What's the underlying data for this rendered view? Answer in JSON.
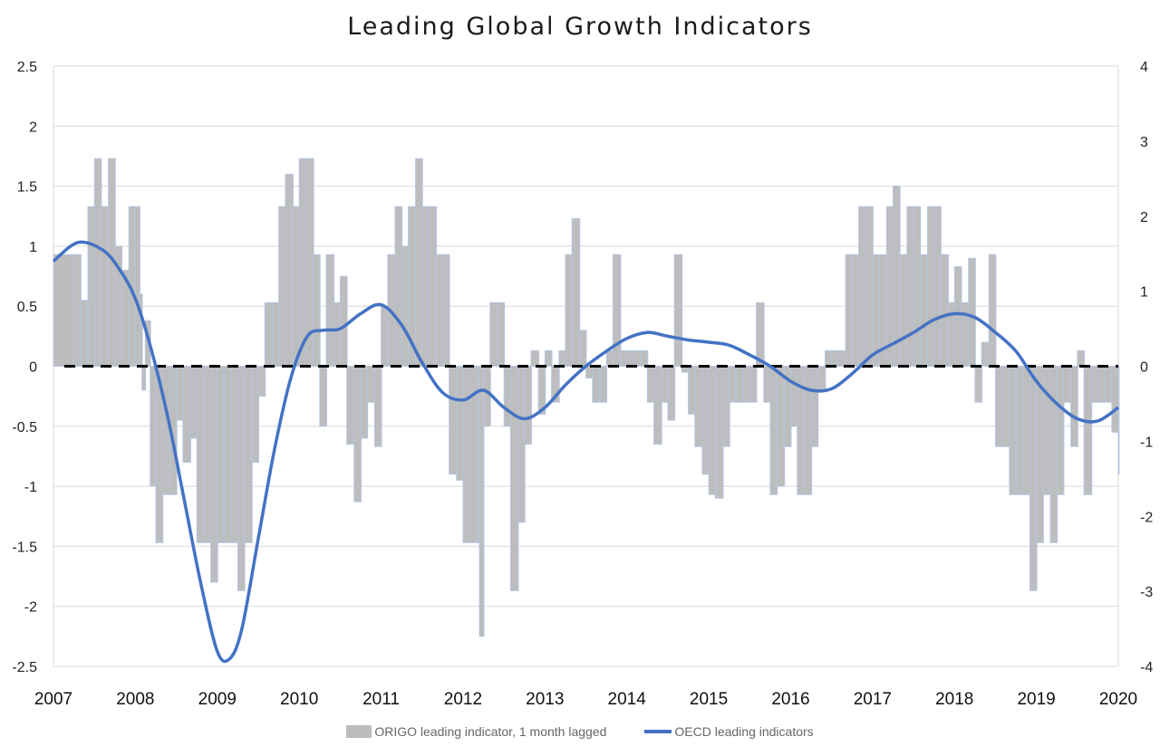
{
  "chart_data": {
    "type": "bar",
    "title": "Leading Global Growth Indicators",
    "xlabel": "",
    "ylabel": "",
    "x_ticks": [
      "2007",
      "2008",
      "2009",
      "2010",
      "2011",
      "2012",
      "2013",
      "2014",
      "2015",
      "2016",
      "2017",
      "2018",
      "2019",
      "2020"
    ],
    "xlim": [
      2007,
      2020
    ],
    "left_axis": {
      "ylim": [
        -2.5,
        2.5
      ],
      "ticks": [
        "2.5",
        "2",
        "1.5",
        "1",
        "0.5",
        "0",
        "-0.5",
        "-1",
        "-1.5",
        "-2",
        "-2.5"
      ]
    },
    "right_axis": {
      "ylim": [
        -4,
        4
      ],
      "ticks": [
        "4",
        "3",
        "2",
        "1",
        "0",
        "-1",
        "-2",
        "-3",
        "-4"
      ]
    },
    "grid": true,
    "zero_line": "dashed",
    "legend_position": "bottom",
    "series": [
      {
        "name": "ORIGO leading indicator, 1 month lagged",
        "kind": "bar",
        "axis": "left",
        "color": "#bdbdbd",
        "points": [
          [
            2007.0,
            0.93
          ],
          [
            2007.25,
            0.93
          ],
          [
            2007.33,
            0.55
          ],
          [
            2007.42,
            1.33
          ],
          [
            2007.5,
            1.73
          ],
          [
            2007.58,
            1.33
          ],
          [
            2007.67,
            1.73
          ],
          [
            2007.75,
            1.0
          ],
          [
            2007.83,
            0.8
          ],
          [
            2007.92,
            1.33
          ],
          [
            2008.0,
            1.33
          ],
          [
            2008.05,
            0.6
          ],
          [
            2008.08,
            -0.2
          ],
          [
            2008.12,
            0.38
          ],
          [
            2008.18,
            -1.0
          ],
          [
            2008.25,
            -1.47
          ],
          [
            2008.33,
            -1.07
          ],
          [
            2008.42,
            -1.07
          ],
          [
            2008.5,
            -0.45
          ],
          [
            2008.58,
            -0.8
          ],
          [
            2008.67,
            -0.6
          ],
          [
            2008.75,
            -1.47
          ],
          [
            2008.83,
            -1.47
          ],
          [
            2008.92,
            -1.8
          ],
          [
            2009.0,
            -1.47
          ],
          [
            2009.08,
            -1.47
          ],
          [
            2009.17,
            -1.47
          ],
          [
            2009.25,
            -1.87
          ],
          [
            2009.33,
            -1.47
          ],
          [
            2009.42,
            -0.8
          ],
          [
            2009.5,
            -0.25
          ],
          [
            2009.58,
            0.53
          ],
          [
            2009.67,
            0.53
          ],
          [
            2009.75,
            1.33
          ],
          [
            2009.83,
            1.6
          ],
          [
            2009.92,
            1.33
          ],
          [
            2010.0,
            1.73
          ],
          [
            2010.08,
            1.73
          ],
          [
            2010.17,
            0.93
          ],
          [
            2010.25,
            -0.5
          ],
          [
            2010.33,
            0.93
          ],
          [
            2010.42,
            0.53
          ],
          [
            2010.5,
            0.75
          ],
          [
            2010.58,
            -0.65
          ],
          [
            2010.67,
            -1.13
          ],
          [
            2010.75,
            -0.6
          ],
          [
            2010.83,
            -0.3
          ],
          [
            2010.92,
            -0.67
          ],
          [
            2011.0,
            0.5
          ],
          [
            2011.08,
            0.93
          ],
          [
            2011.17,
            1.33
          ],
          [
            2011.25,
            1.0
          ],
          [
            2011.33,
            1.33
          ],
          [
            2011.42,
            1.73
          ],
          [
            2011.5,
            1.33
          ],
          [
            2011.58,
            1.33
          ],
          [
            2011.67,
            0.93
          ],
          [
            2011.75,
            0.93
          ],
          [
            2011.83,
            -0.9
          ],
          [
            2011.92,
            -0.95
          ],
          [
            2012.0,
            -1.47
          ],
          [
            2012.08,
            -1.47
          ],
          [
            2012.17,
            -1.47
          ],
          [
            2012.2,
            -2.25
          ],
          [
            2012.25,
            -0.5
          ],
          [
            2012.33,
            0.53
          ],
          [
            2012.42,
            0.53
          ],
          [
            2012.5,
            -0.5
          ],
          [
            2012.58,
            -1.87
          ],
          [
            2012.67,
            -1.3
          ],
          [
            2012.75,
            -0.65
          ],
          [
            2012.83,
            0.13
          ],
          [
            2012.92,
            -0.4
          ],
          [
            2013.0,
            0.13
          ],
          [
            2013.08,
            -0.3
          ],
          [
            2013.17,
            0.13
          ],
          [
            2013.25,
            0.93
          ],
          [
            2013.33,
            1.23
          ],
          [
            2013.42,
            0.3
          ],
          [
            2013.5,
            -0.1
          ],
          [
            2013.58,
            -0.3
          ],
          [
            2013.67,
            -0.3
          ],
          [
            2013.75,
            0.13
          ],
          [
            2013.83,
            0.93
          ],
          [
            2013.92,
            0.13
          ],
          [
            2014.0,
            0.13
          ],
          [
            2014.08,
            0.13
          ],
          [
            2014.17,
            0.13
          ],
          [
            2014.25,
            -0.3
          ],
          [
            2014.33,
            -0.65
          ],
          [
            2014.42,
            -0.3
          ],
          [
            2014.5,
            -0.45
          ],
          [
            2014.58,
            0.93
          ],
          [
            2014.67,
            -0.05
          ],
          [
            2014.75,
            -0.4
          ],
          [
            2014.83,
            -0.67
          ],
          [
            2014.92,
            -0.9
          ],
          [
            2015.0,
            -1.07
          ],
          [
            2015.08,
            -1.1
          ],
          [
            2015.17,
            -0.67
          ],
          [
            2015.25,
            -0.3
          ],
          [
            2015.33,
            -0.3
          ],
          [
            2015.42,
            -0.3
          ],
          [
            2015.5,
            -0.3
          ],
          [
            2015.58,
            0.53
          ],
          [
            2015.67,
            -0.3
          ],
          [
            2015.75,
            -1.07
          ],
          [
            2015.83,
            -1.0
          ],
          [
            2015.92,
            -0.67
          ],
          [
            2016.0,
            -0.5
          ],
          [
            2016.08,
            -1.07
          ],
          [
            2016.17,
            -1.07
          ],
          [
            2016.25,
            -0.67
          ],
          [
            2016.33,
            -0.2
          ],
          [
            2016.42,
            0.13
          ],
          [
            2016.5,
            0.13
          ],
          [
            2016.58,
            0.13
          ],
          [
            2016.67,
            0.93
          ],
          [
            2016.75,
            0.93
          ],
          [
            2016.83,
            1.33
          ],
          [
            2016.92,
            1.33
          ],
          [
            2017.0,
            0.93
          ],
          [
            2017.08,
            0.93
          ],
          [
            2017.17,
            1.33
          ],
          [
            2017.25,
            1.5
          ],
          [
            2017.33,
            0.93
          ],
          [
            2017.42,
            1.33
          ],
          [
            2017.5,
            1.33
          ],
          [
            2017.58,
            0.93
          ],
          [
            2017.67,
            1.33
          ],
          [
            2017.75,
            1.33
          ],
          [
            2017.83,
            0.93
          ],
          [
            2017.92,
            0.53
          ],
          [
            2018.0,
            0.83
          ],
          [
            2018.08,
            0.53
          ],
          [
            2018.17,
            0.9
          ],
          [
            2018.25,
            -0.3
          ],
          [
            2018.33,
            0.2
          ],
          [
            2018.42,
            0.93
          ],
          [
            2018.5,
            -0.67
          ],
          [
            2018.58,
            -0.67
          ],
          [
            2018.67,
            -1.07
          ],
          [
            2018.75,
            -1.07
          ],
          [
            2018.83,
            -1.07
          ],
          [
            2018.92,
            -1.87
          ],
          [
            2019.0,
            -1.47
          ],
          [
            2019.08,
            -1.07
          ],
          [
            2019.17,
            -1.47
          ],
          [
            2019.25,
            -1.07
          ],
          [
            2019.33,
            -0.3
          ],
          [
            2019.42,
            -0.67
          ],
          [
            2019.5,
            0.13
          ],
          [
            2019.58,
            -1.07
          ],
          [
            2019.67,
            -0.3
          ],
          [
            2019.75,
            -0.3
          ],
          [
            2019.83,
            -0.3
          ],
          [
            2019.92,
            -0.55
          ],
          [
            2020.0,
            -0.9
          ]
        ]
      },
      {
        "name": "OECD leading indicators",
        "kind": "line",
        "axis": "right",
        "color": "#4472c4",
        "points": [
          [
            2007.0,
            1.4
          ],
          [
            2007.3,
            1.65
          ],
          [
            2007.6,
            1.55
          ],
          [
            2007.8,
            1.3
          ],
          [
            2008.0,
            0.9
          ],
          [
            2008.2,
            0.2
          ],
          [
            2008.4,
            -0.7
          ],
          [
            2008.6,
            -1.8
          ],
          [
            2008.8,
            -2.9
          ],
          [
            2009.0,
            -3.8
          ],
          [
            2009.15,
            -3.9
          ],
          [
            2009.3,
            -3.5
          ],
          [
            2009.5,
            -2.3
          ],
          [
            2009.7,
            -1.1
          ],
          [
            2009.9,
            -0.15
          ],
          [
            2010.1,
            0.4
          ],
          [
            2010.3,
            0.48
          ],
          [
            2010.5,
            0.5
          ],
          [
            2010.75,
            0.7
          ],
          [
            2011.0,
            0.82
          ],
          [
            2011.25,
            0.55
          ],
          [
            2011.5,
            0.05
          ],
          [
            2011.75,
            -0.35
          ],
          [
            2012.0,
            -0.45
          ],
          [
            2012.25,
            -0.32
          ],
          [
            2012.5,
            -0.55
          ],
          [
            2012.75,
            -0.7
          ],
          [
            2013.0,
            -0.55
          ],
          [
            2013.25,
            -0.25
          ],
          [
            2013.5,
            0.0
          ],
          [
            2013.75,
            0.2
          ],
          [
            2014.0,
            0.37
          ],
          [
            2014.25,
            0.45
          ],
          [
            2014.5,
            0.4
          ],
          [
            2014.75,
            0.35
          ],
          [
            2015.0,
            0.32
          ],
          [
            2015.25,
            0.28
          ],
          [
            2015.5,
            0.15
          ],
          [
            2015.75,
            0.0
          ],
          [
            2016.0,
            -0.2
          ],
          [
            2016.25,
            -0.32
          ],
          [
            2016.5,
            -0.3
          ],
          [
            2016.75,
            -0.1
          ],
          [
            2017.0,
            0.15
          ],
          [
            2017.25,
            0.3
          ],
          [
            2017.5,
            0.45
          ],
          [
            2017.75,
            0.62
          ],
          [
            2018.0,
            0.7
          ],
          [
            2018.25,
            0.65
          ],
          [
            2018.5,
            0.45
          ],
          [
            2018.75,
            0.2
          ],
          [
            2019.0,
            -0.2
          ],
          [
            2019.25,
            -0.5
          ],
          [
            2019.5,
            -0.7
          ],
          [
            2019.75,
            -0.73
          ],
          [
            2020.0,
            -0.55
          ]
        ]
      }
    ]
  }
}
